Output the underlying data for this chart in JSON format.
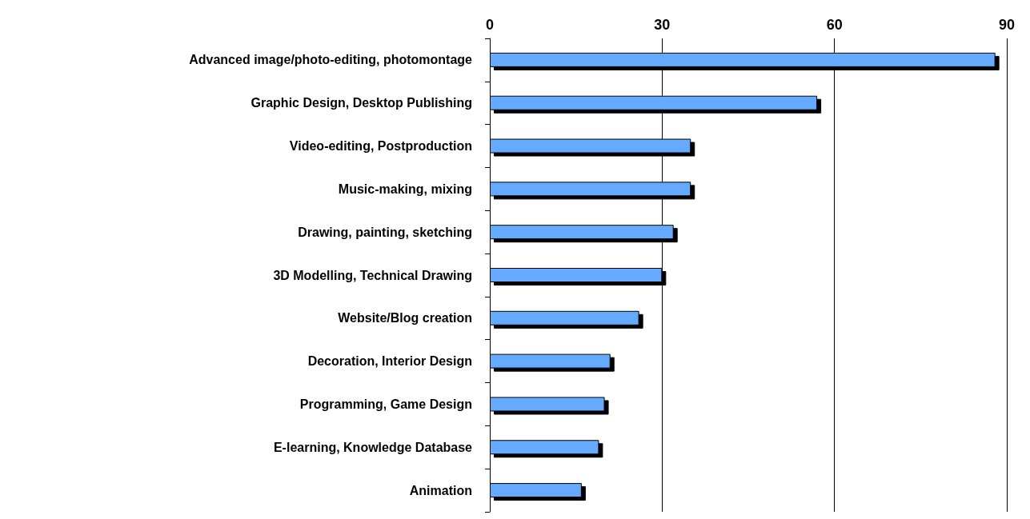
{
  "chart_data": {
    "type": "bar",
    "orientation": "horizontal",
    "categories": [
      "Advanced image/photo-editing, photomontage",
      "Graphic Design, Desktop Publishing",
      "Video-editing, Postproduction",
      "Music-making, mixing",
      "Drawing, painting, sketching",
      "3D Modelling, Technical Drawing",
      "Website/Blog creation",
      "Decoration, Interior Design",
      "Programming, Game Design",
      "E-learning, Knowledge Database",
      "Animation"
    ],
    "values": [
      88,
      57,
      35,
      35,
      32,
      30,
      26,
      21,
      20,
      19,
      16
    ],
    "color": "#66aaff",
    "xlim": [
      0,
      90
    ],
    "xticks": [
      0,
      30,
      60,
      90
    ],
    "grid": "x"
  }
}
